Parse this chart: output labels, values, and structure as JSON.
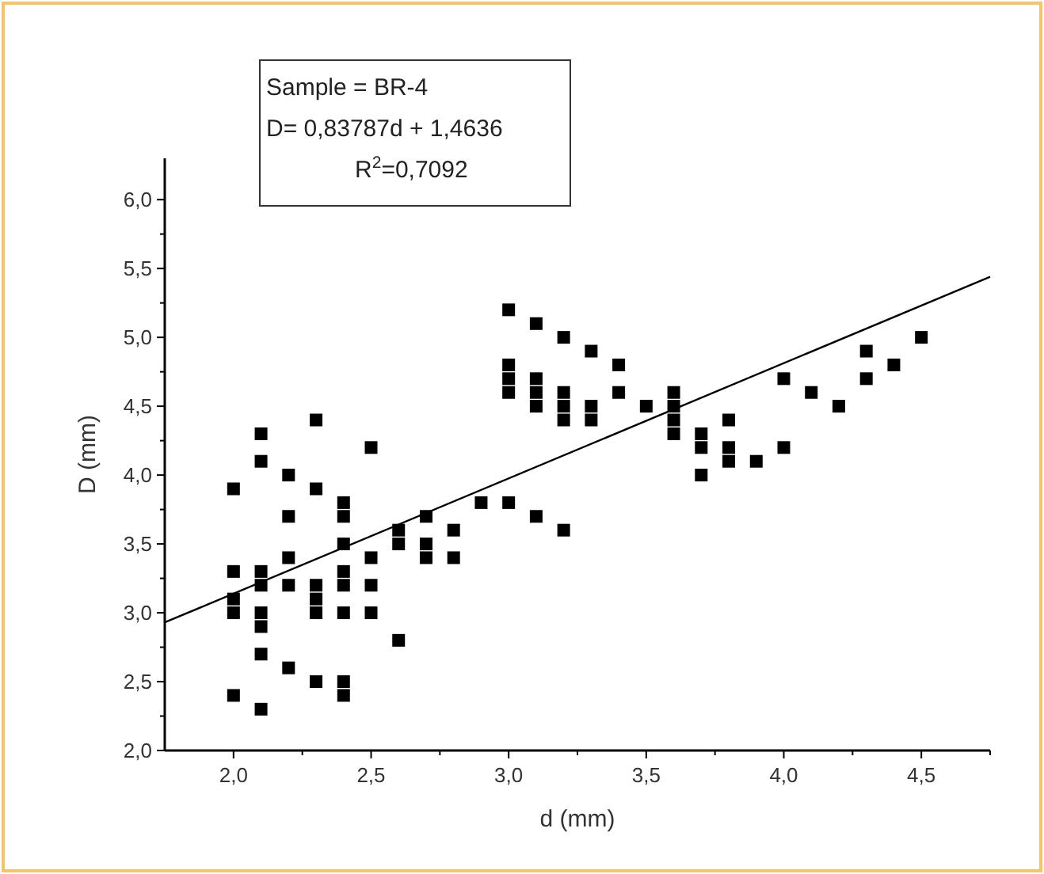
{
  "chart_data": {
    "type": "scatter",
    "xlabel": "d (mm)",
    "ylabel": "D (mm)",
    "annotations": [
      "Sample = BR-4",
      "D= 0,83787d + 1,4636",
      "R$^{2}$=0,7092"
    ],
    "xlim": [
      1.75,
      4.75
    ],
    "ylim": [
      2,
      6.3
    ],
    "xticks": [
      {
        "value": 2,
        "label": "2,0"
      },
      {
        "value": 2.25,
        "label": null
      },
      {
        "value": 2.5,
        "label": "2,5"
      },
      {
        "value": 2.75,
        "label": null
      },
      {
        "value": 3,
        "label": "3,0"
      },
      {
        "value": 3.25,
        "label": null
      },
      {
        "value": 3.5,
        "label": "3,5"
      },
      {
        "value": 3.75,
        "label": null
      },
      {
        "value": 4,
        "label": "4,0"
      },
      {
        "value": 4.25,
        "label": null
      },
      {
        "value": 4.5,
        "label": "4,5"
      },
      {
        "value": 4.75,
        "label": null
      }
    ],
    "yticks": [
      {
        "value": 2,
        "label": "2,0"
      },
      {
        "value": 2.25,
        "label": null
      },
      {
        "value": 2.5,
        "label": "2,5"
      },
      {
        "value": 2.75,
        "label": null
      },
      {
        "value": 3,
        "label": "3,0"
      },
      {
        "value": 3.25,
        "label": null
      },
      {
        "value": 3.5,
        "label": "3,5"
      },
      {
        "value": 3.75,
        "label": null
      },
      {
        "value": 4,
        "label": "4,0"
      },
      {
        "value": 4.25,
        "label": null
      },
      {
        "value": 4.5,
        "label": "4,5"
      },
      {
        "value": 4.75,
        "label": null
      },
      {
        "value": 5,
        "label": "5,0"
      },
      {
        "value": 5.25,
        "label": null
      },
      {
        "value": 5.5,
        "label": "5,5"
      },
      {
        "value": 5.75,
        "label": null
      },
      {
        "value": 6,
        "label": "6,0"
      }
    ],
    "grid": false,
    "series": [
      {
        "marker": "square",
        "color": "#000000",
        "x": [
          2,
          2,
          2,
          2,
          2,
          2.1,
          2.1,
          2.1,
          2.1,
          2.1,
          2.1,
          2.1,
          2.1,
          2.2,
          2.2,
          2.2,
          2.2,
          2.2,
          2.3,
          2.3,
          2.3,
          2.3,
          2.3,
          2.3,
          2.4,
          2.4,
          2.4,
          2.4,
          2.4,
          2.4,
          2.4,
          2.4,
          2.5,
          2.5,
          2.5,
          2.5,
          2.6,
          2.6,
          2.6,
          2.7,
          2.7,
          2.7,
          2.8,
          2.8,
          2.9,
          3,
          3,
          3,
          3,
          3,
          3.1,
          3.1,
          3.1,
          3.1,
          3.1,
          3.2,
          3.2,
          3.2,
          3.2,
          3.2,
          3.3,
          3.3,
          3.3,
          3.4,
          3.4,
          3.5,
          3.6,
          3.6,
          3.6,
          3.6,
          3.7,
          3.7,
          3.7,
          3.8,
          3.8,
          3.8,
          3.9,
          4,
          4,
          4.1,
          4.2,
          4.3,
          4.3,
          4.4,
          4.5
        ],
        "values": [
          3.9,
          3.3,
          3.1,
          3.0,
          2.4,
          4.3,
          4.1,
          3.3,
          3.2,
          3.0,
          2.9,
          2.7,
          2.3,
          4.0,
          3.7,
          3.4,
          3.2,
          2.6,
          4.4,
          3.9,
          3.2,
          3.1,
          3.0,
          2.5,
          3.8,
          3.7,
          3.5,
          3.3,
          3.2,
          3.0,
          2.5,
          2.4,
          4.2,
          3.4,
          3.2,
          3.0,
          3.6,
          3.5,
          2.8,
          3.7,
          3.5,
          3.4,
          3.6,
          3.4,
          3.8,
          5.2,
          4.8,
          4.7,
          4.6,
          3.8,
          5.1,
          4.7,
          4.6,
          4.5,
          3.7,
          5.0,
          4.6,
          4.5,
          4.4,
          3.6,
          4.9,
          4.5,
          4.4,
          4.8,
          4.6,
          4.5,
          4.6,
          4.5,
          4.4,
          4.3,
          4.3,
          4.2,
          4.0,
          4.4,
          4.2,
          4.1,
          4.1,
          4.7,
          4.2,
          4.6,
          4.5,
          4.9,
          4.7,
          4.8,
          5.0
        ]
      },
      {
        "type": "line",
        "marker": "none",
        "line_style": "solid",
        "color": "#000000",
        "x": [
          1.75,
          4.75
        ],
        "values": [
          2.93,
          5.44
        ]
      }
    ]
  }
}
